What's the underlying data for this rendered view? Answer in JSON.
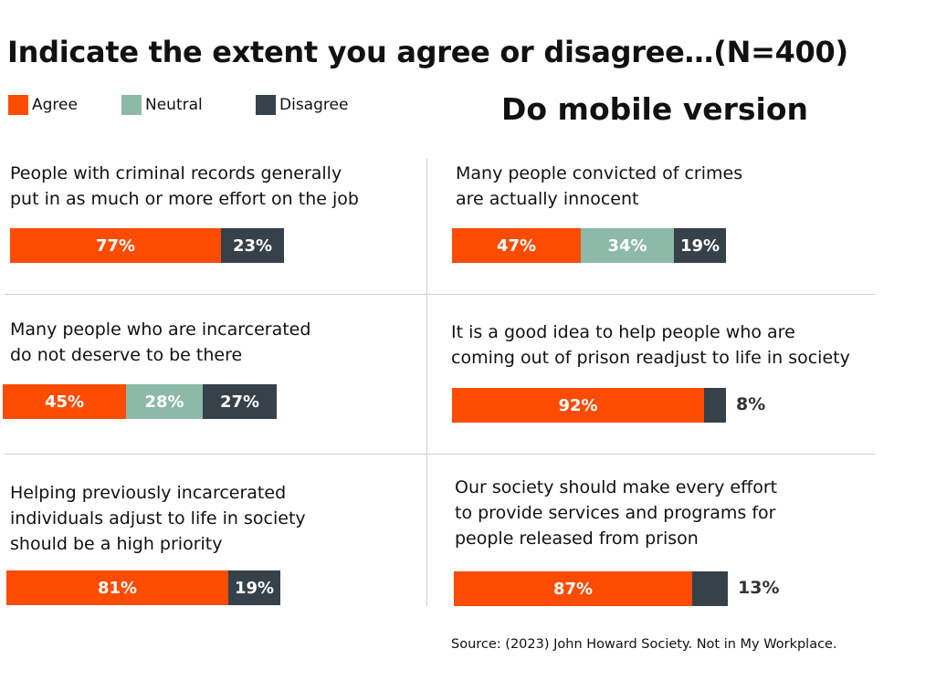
{
  "title": "Indicate the extent you agree or disagree…(N=400)",
  "note": "Do mobile version",
  "colors": {
    "agree": "#fc4c02",
    "neutral": "#8cb9a8",
    "disagree": "#36414a"
  },
  "legend": [
    {
      "label": "Agree",
      "color": "#fc4c02"
    },
    {
      "label": "Neutral",
      "color": "#8cb9a8"
    },
    {
      "label": "Disagree",
      "color": "#36414a"
    }
  ],
  "chart_data": {
    "type": "bar",
    "stacked": true,
    "orientation": "horizontal",
    "series_names": [
      "Agree",
      "Neutral",
      "Disagree"
    ],
    "statements": [
      {
        "lines": [
          "People with criminal records generally",
          "put in as much or more effort on the job"
        ],
        "agree": 77,
        "neutral": 0,
        "disagree": 23,
        "labels": [
          "77%",
          "",
          "23%"
        ]
      },
      {
        "lines": [
          "Many people convicted of crimes",
          "are actually innocent"
        ],
        "agree": 47,
        "neutral": 34,
        "disagree": 19,
        "labels": [
          "47%",
          "34%",
          "19%"
        ]
      },
      {
        "lines": [
          "Many people who are incarcerated",
          "do not deserve to be there"
        ],
        "agree": 45,
        "neutral": 28,
        "disagree": 27,
        "labels": [
          "45%",
          "28%",
          "27%"
        ]
      },
      {
        "lines": [
          "It is a good idea to help people who are",
          "coming out of prison readjust to life in society"
        ],
        "agree": 92,
        "neutral": 0,
        "disagree": 8,
        "labels": [
          "92%",
          "",
          "8%"
        ]
      },
      {
        "lines": [
          "Helping previously incarcerated",
          "individuals adjust to life in society",
          "should be a high priority"
        ],
        "agree": 81,
        "neutral": 0,
        "disagree": 19,
        "labels": [
          "81%",
          "",
          "19%"
        ]
      },
      {
        "lines": [
          "Our society should make every effort",
          "to provide services and programs for",
          "people released from prison"
        ],
        "agree": 87,
        "neutral": 0,
        "disagree": 13,
        "labels": [
          "87%",
          "",
          "13%"
        ]
      }
    ]
  },
  "source": "Source: (2023) John Howard Society. Not in My Workplace."
}
